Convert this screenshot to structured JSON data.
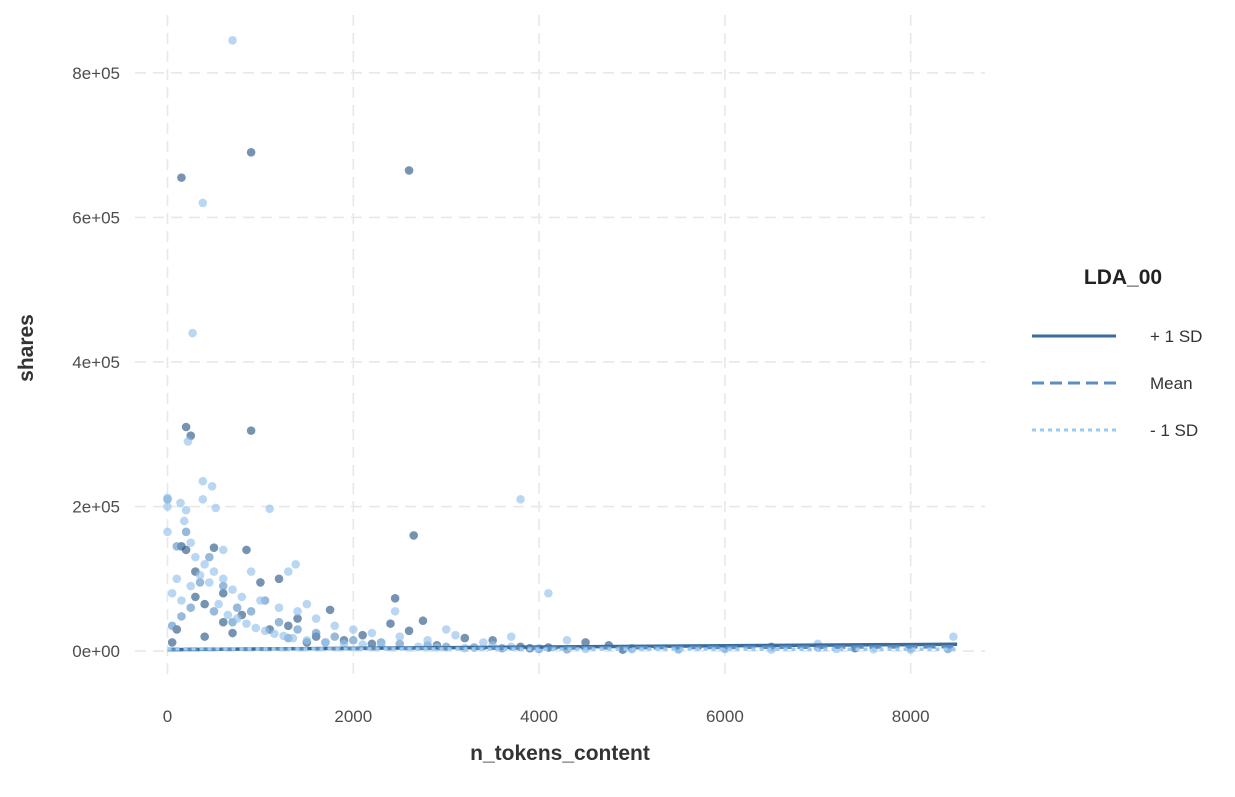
{
  "chart_data": {
    "type": "scatter",
    "xlabel": "n_tokens_content",
    "ylabel": "shares",
    "xlim": [
      -350,
      8800
    ],
    "ylim": [
      -40000,
      880000
    ],
    "xticks": [
      0,
      2000,
      4000,
      6000,
      8000
    ],
    "xtick_labels": [
      "0",
      "2000",
      "4000",
      "6000",
      "8000"
    ],
    "yticks": [
      0,
      200000,
      400000,
      600000,
      800000
    ],
    "ytick_labels": [
      "0e+00",
      "2e+05",
      "4e+05",
      "6e+05",
      "8e+05"
    ],
    "grid": true,
    "legend": {
      "title": "LDA_00",
      "placement": "right",
      "entries": [
        {
          "label": "+ 1 SD",
          "style": "solid",
          "color": "#3b6b9a"
        },
        {
          "label": "Mean",
          "style": "dashed",
          "color": "#5b8ec4"
        },
        {
          "label": "- 1 SD",
          "style": "dotted",
          "color": "#9ccbf0"
        }
      ]
    },
    "lines": [
      {
        "name": "+ 1 SD",
        "x": [
          0,
          8500
        ],
        "y": [
          2000,
          9500
        ],
        "color": "#3b6b9a",
        "style": "solid"
      },
      {
        "name": "Mean",
        "x": [
          0,
          8500
        ],
        "y": [
          2500,
          6000
        ],
        "color": "#5b8ec4",
        "style": "dashed"
      },
      {
        "name": "- 1 SD",
        "x": [
          0,
          8500
        ],
        "y": [
          3000,
          2500
        ],
        "color": "#9ccbf0",
        "style": "dotted"
      }
    ],
    "series": [
      {
        "group": "+ 1 SD",
        "color": "#2c5b88",
        "points": [
          [
            900,
            690000
          ],
          [
            150,
            655000
          ],
          [
            2600,
            665000
          ],
          [
            200,
            310000
          ],
          [
            250,
            298000
          ],
          [
            900,
            305000
          ],
          [
            2650,
            160000
          ],
          [
            150,
            145000
          ],
          [
            200,
            140000
          ],
          [
            500,
            143000
          ],
          [
            850,
            140000
          ],
          [
            1000,
            95000
          ],
          [
            1200,
            100000
          ],
          [
            2450,
            73000
          ],
          [
            1750,
            57000
          ],
          [
            300,
            75000
          ],
          [
            2750,
            42000
          ],
          [
            400,
            65000
          ],
          [
            1400,
            45000
          ],
          [
            2600,
            28000
          ],
          [
            3200,
            18000
          ],
          [
            3500,
            15000
          ],
          [
            4500,
            12000
          ],
          [
            4750,
            8000
          ],
          [
            4100,
            5000
          ],
          [
            6500,
            6000
          ],
          [
            7400,
            4000
          ],
          [
            3900,
            4000
          ],
          [
            600,
            40000
          ],
          [
            100,
            30000
          ],
          [
            700,
            25000
          ],
          [
            1100,
            30000
          ],
          [
            1600,
            20000
          ],
          [
            1900,
            15000
          ],
          [
            2200,
            10000
          ],
          [
            2900,
            8000
          ],
          [
            3800,
            6000
          ],
          [
            800,
            50000
          ],
          [
            1300,
            35000
          ],
          [
            400,
            20000
          ],
          [
            50,
            12000
          ],
          [
            1500,
            12000
          ],
          [
            2100,
            22000
          ],
          [
            300,
            110000
          ],
          [
            600,
            80000
          ],
          [
            4900,
            2000
          ],
          [
            2400,
            38000
          ]
        ]
      },
      {
        "group": "Mean",
        "color": "#5f93c8",
        "points": [
          [
            0,
            210000
          ],
          [
            100,
            145000
          ],
          [
            200,
            165000
          ],
          [
            350,
            95000
          ],
          [
            450,
            130000
          ],
          [
            600,
            90000
          ],
          [
            750,
            60000
          ],
          [
            900,
            55000
          ],
          [
            1050,
            70000
          ],
          [
            1200,
            40000
          ],
          [
            1400,
            30000
          ],
          [
            1600,
            25000
          ],
          [
            1800,
            20000
          ],
          [
            2000,
            15000
          ],
          [
            2300,
            12000
          ],
          [
            2500,
            10000
          ],
          [
            2800,
            8000
          ],
          [
            3000,
            6000
          ],
          [
            3300,
            5000
          ],
          [
            3600,
            4000
          ],
          [
            4000,
            3000
          ],
          [
            4300,
            2500
          ],
          [
            5000,
            4000
          ],
          [
            5500,
            3000
          ],
          [
            6000,
            3500
          ],
          [
            7000,
            5000
          ],
          [
            8000,
            4000
          ],
          [
            8400,
            3000
          ],
          [
            250,
            60000
          ],
          [
            500,
            55000
          ],
          [
            700,
            40000
          ],
          [
            150,
            48000
          ],
          [
            50,
            35000
          ],
          [
            1300,
            18000
          ],
          [
            1700,
            12000
          ]
        ]
      },
      {
        "group": "- 1 SD",
        "color": "#93c2ec",
        "points": [
          [
            700,
            845000
          ],
          [
            380,
            620000
          ],
          [
            270,
            440000
          ],
          [
            220,
            290000
          ],
          [
            380,
            235000
          ],
          [
            480,
            228000
          ],
          [
            380,
            210000
          ],
          [
            0,
            212000
          ],
          [
            140,
            205000
          ],
          [
            200,
            195000
          ],
          [
            520,
            198000
          ],
          [
            1100,
            197000
          ],
          [
            3800,
            210000
          ],
          [
            4100,
            80000
          ],
          [
            3700,
            20000
          ],
          [
            4300,
            15000
          ],
          [
            0,
            200000
          ],
          [
            0,
            165000
          ],
          [
            180,
            180000
          ],
          [
            250,
            150000
          ],
          [
            300,
            130000
          ],
          [
            400,
            120000
          ],
          [
            500,
            110000
          ],
          [
            600,
            100000
          ],
          [
            700,
            85000
          ],
          [
            800,
            75000
          ],
          [
            1000,
            70000
          ],
          [
            1200,
            60000
          ],
          [
            1400,
            55000
          ],
          [
            1600,
            45000
          ],
          [
            1800,
            35000
          ],
          [
            2000,
            30000
          ],
          [
            2200,
            25000
          ],
          [
            2450,
            55000
          ],
          [
            2500,
            20000
          ],
          [
            2800,
            15000
          ],
          [
            3000,
            30000
          ],
          [
            3100,
            22000
          ],
          [
            3400,
            12000
          ],
          [
            3500,
            8000
          ],
          [
            3700,
            6000
          ],
          [
            4000,
            4000
          ],
          [
            4500,
            3000
          ],
          [
            5000,
            2500
          ],
          [
            5500,
            2000
          ],
          [
            6000,
            3000
          ],
          [
            6500,
            2000
          ],
          [
            7000,
            10000
          ],
          [
            7200,
            3000
          ],
          [
            7600,
            2500
          ],
          [
            8000,
            2000
          ],
          [
            8460,
            20000
          ],
          [
            100,
            100000
          ],
          [
            50,
            80000
          ],
          [
            150,
            70000
          ],
          [
            250,
            90000
          ],
          [
            350,
            105000
          ],
          [
            450,
            95000
          ],
          [
            550,
            65000
          ],
          [
            650,
            50000
          ],
          [
            750,
            45000
          ],
          [
            850,
            38000
          ],
          [
            950,
            32000
          ],
          [
            1050,
            28000
          ],
          [
            1150,
            24000
          ],
          [
            1250,
            21000
          ],
          [
            1350,
            18000
          ],
          [
            1500,
            15000
          ],
          [
            1700,
            12000
          ],
          [
            1900,
            10000
          ],
          [
            2100,
            9000
          ],
          [
            2300,
            8000
          ],
          [
            2700,
            6000
          ],
          [
            2900,
            5000
          ],
          [
            3200,
            4000
          ],
          [
            1300,
            110000
          ],
          [
            1380,
            120000
          ],
          [
            900,
            110000
          ],
          [
            600,
            140000
          ],
          [
            1500,
            65000
          ]
        ]
      }
    ]
  }
}
